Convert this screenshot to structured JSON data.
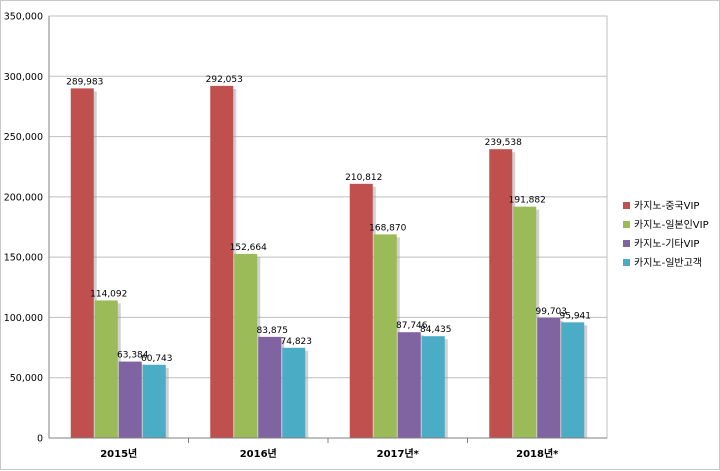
{
  "chart_data": {
    "type": "bar",
    "categories": [
      "2015년",
      "2016년",
      "2017년*",
      "2018년*"
    ],
    "series": [
      {
        "name": "카지노-중국VIP",
        "color": "#c0504d",
        "values": [
          289983,
          292053,
          210812,
          239538
        ],
        "labels": [
          "289,983",
          "292,053",
          "210,812",
          "239,538"
        ]
      },
      {
        "name": "카지노-일본인VIP",
        "color": "#9bbb59",
        "values": [
          114092,
          152664,
          168870,
          191882
        ],
        "labels": [
          "114,092",
          "152,664",
          "168,870",
          "191,882"
        ]
      },
      {
        "name": "카지노-기타VIP",
        "color": "#8064a2",
        "values": [
          63384,
          83875,
          87746,
          99703
        ],
        "labels": [
          "63,384",
          "83,875",
          "87,746",
          "99,703"
        ]
      },
      {
        "name": "카지노-일반고객",
        "color": "#4bacc6",
        "values": [
          60743,
          74823,
          84435,
          95941
        ],
        "labels": [
          "60,743",
          "74,823",
          "84,435",
          "95,941"
        ]
      }
    ],
    "yticks": [
      "0",
      "50,000",
      "100,000",
      "150,000",
      "200,000",
      "250,000",
      "300,000",
      "350,000"
    ],
    "ylim": [
      0,
      350000
    ],
    "grid": true,
    "legend_position": "right"
  }
}
